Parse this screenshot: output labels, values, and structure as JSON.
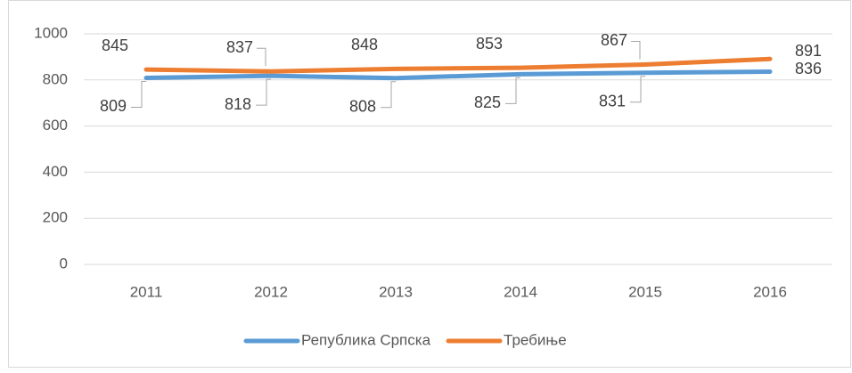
{
  "chart_data": {
    "type": "line",
    "categories": [
      "2011",
      "2012",
      "2013",
      "2014",
      "2015",
      "2016"
    ],
    "series": [
      {
        "name": "Република Српска",
        "color": "#5b9bd5",
        "values": [
          809,
          818,
          808,
          825,
          831,
          836
        ]
      },
      {
        "name": "Требиње",
        "color": "#ed7d31",
        "values": [
          845,
          837,
          848,
          853,
          867,
          891
        ]
      }
    ],
    "ylim": [
      0,
      1000
    ],
    "yticks": [
      0,
      200,
      400,
      600,
      800,
      1000
    ],
    "grid": true,
    "legend": "bottom"
  }
}
